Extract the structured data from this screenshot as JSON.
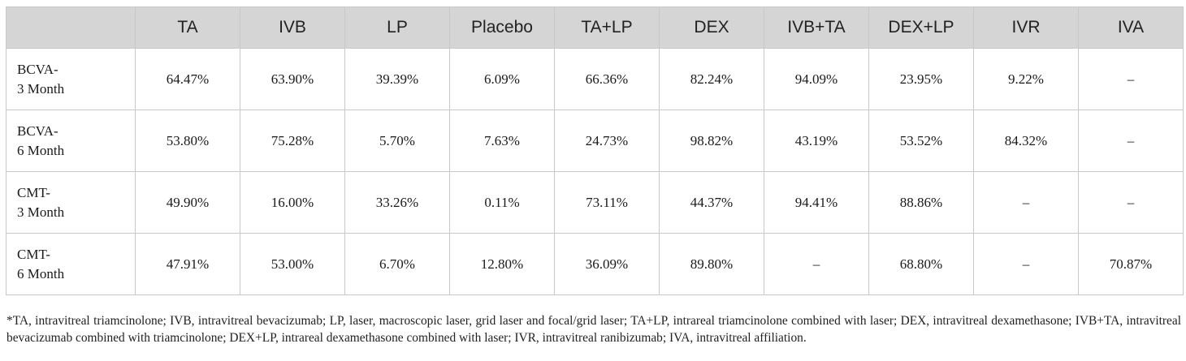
{
  "table": {
    "corner": "",
    "columns": [
      "TA",
      "IVB",
      "LP",
      "Placebo",
      "TA+LP",
      "DEX",
      "IVB+TA",
      "DEX+LP",
      "IVR",
      "IVA"
    ],
    "rows": [
      {
        "label_line1": "BCVA-",
        "label_line2": "3 Month",
        "cells": [
          "64.47%",
          "63.90%",
          "39.39%",
          "6.09%",
          "66.36%",
          "82.24%",
          "94.09%",
          "23.95%",
          "9.22%",
          "–"
        ]
      },
      {
        "label_line1": "BCVA-",
        "label_line2": "6 Month",
        "cells": [
          "53.80%",
          "75.28%",
          "5.70%",
          "7.63%",
          "24.73%",
          "98.82%",
          "43.19%",
          "53.52%",
          "84.32%",
          "–"
        ]
      },
      {
        "label_line1": "CMT-",
        "label_line2": "3 Month",
        "cells": [
          "49.90%",
          "16.00%",
          "33.26%",
          "0.11%",
          "73.11%",
          "44.37%",
          "94.41%",
          "88.86%",
          "–",
          "–"
        ]
      },
      {
        "label_line1": "CMT-",
        "label_line2": "6 Month",
        "cells": [
          "47.91%",
          "53.00%",
          "6.70%",
          "12.80%",
          "36.09%",
          "89.80%",
          "–",
          "68.80%",
          "–",
          "70.87%"
        ]
      }
    ]
  },
  "footnote": "*TA, intravitreal triamcinolone; IVB, intravitreal bevacizumab; LP, laser, macroscopic laser, grid laser and focal/grid laser; TA+LP, intrareal triamcinolone combined with laser; DEX, intravitreal dexamethasone; IVB+TA, intravitreal bevacizumab combined with triamcinolone; DEX+LP, intrareal dexamethasone combined with laser; IVR, intravitreal ranibizumab; IVA, intravitreal affiliation."
}
